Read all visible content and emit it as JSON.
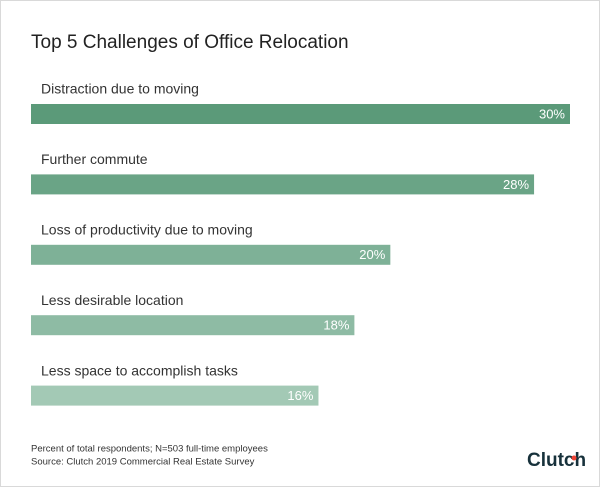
{
  "chart_data": {
    "type": "bar",
    "orientation": "horizontal",
    "title": "Top 5 Challenges of Office Relocation",
    "categories": [
      "Distraction due to moving",
      "Further commute",
      "Loss of productivity due to moving",
      "Less desirable location",
      "Less space to accomplish tasks"
    ],
    "values": [
      30,
      28,
      20,
      18,
      16
    ],
    "value_labels": [
      "30%",
      "28%",
      "20%",
      "18%",
      "16%"
    ],
    "colors": [
      "#5b9a79",
      "#6aa486",
      "#7eb197",
      "#8ebba4",
      "#a3c9b5"
    ],
    "xlim": [
      0,
      30
    ],
    "footnotes": [
      "Percent of total respondents; N=503 full-time employees",
      "Source: Clutch 2019 Commercial Real Estate Survey"
    ],
    "logo": "Clutch"
  }
}
